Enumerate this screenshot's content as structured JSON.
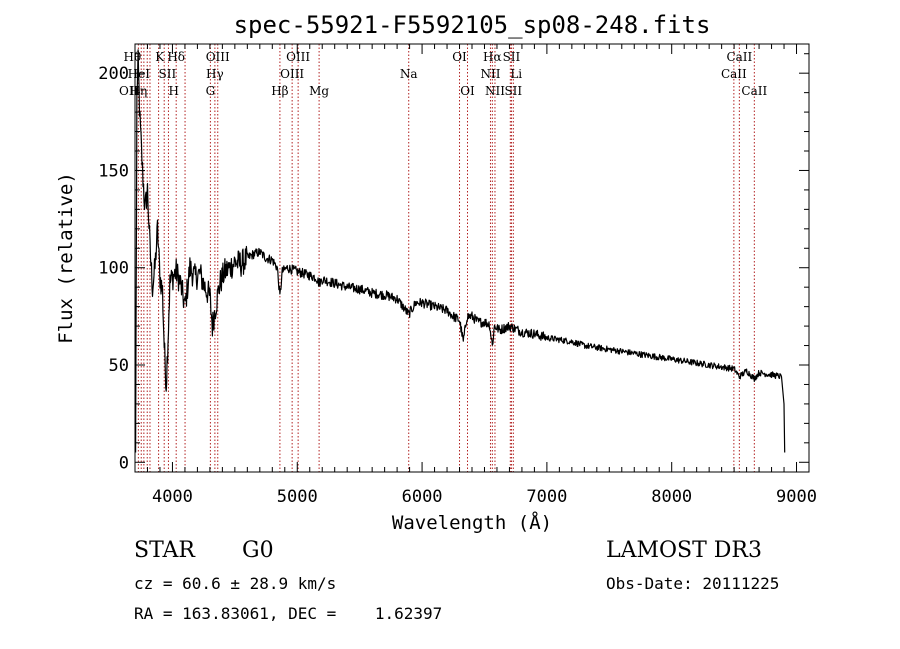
{
  "chart_data": {
    "type": "line",
    "title": "spec-55921-F5592105_sp08-248.fits",
    "xlabel": "Wavelength (Å)",
    "ylabel": "Flux (relative)",
    "xlim": [
      3700,
      9100
    ],
    "ylim": [
      -5,
      215
    ],
    "xticks": [
      4000,
      5000,
      6000,
      7000,
      8000,
      9000
    ],
    "yticks": [
      0,
      50,
      100,
      150,
      200
    ],
    "series": [
      {
        "name": "spectrum",
        "x": [
          3705,
          3715,
          3725,
          3740,
          3760,
          3780,
          3800,
          3820,
          3840,
          3860,
          3880,
          3900,
          3920,
          3934,
          3950,
          3968,
          3980,
          4000,
          4030,
          4060,
          4101,
          4140,
          4180,
          4220,
          4260,
          4300,
          4320,
          4340,
          4380,
          4420,
          4460,
          4500,
          4550,
          4600,
          4650,
          4700,
          4750,
          4800,
          4840,
          4861,
          4880,
          4920,
          4960,
          5000,
          5050,
          5100,
          5150,
          5175,
          5200,
          5300,
          5400,
          5500,
          5600,
          5700,
          5800,
          5893,
          5950,
          6000,
          6100,
          6200,
          6250,
          6300,
          6330,
          6360,
          6400,
          6450,
          6500,
          6540,
          6563,
          6580,
          6620,
          6700,
          6800,
          6900,
          7000,
          7100,
          7200,
          7300,
          7400,
          7500,
          7600,
          7700,
          7800,
          7900,
          8000,
          8100,
          8200,
          8300,
          8400,
          8500,
          8542,
          8600,
          8662,
          8700,
          8800,
          8880,
          8900,
          8905
        ],
        "y": [
          5,
          190,
          205,
          175,
          150,
          130,
          140,
          110,
          90,
          100,
          120,
          95,
          88,
          60,
          40,
          70,
          92,
          95,
          98,
          93,
          80,
          100,
          95,
          97,
          90,
          85,
          70,
          78,
          92,
          98,
          100,
          103,
          102,
          105,
          107,
          108,
          105,
          104,
          100,
          85,
          98,
          100,
          99,
          98,
          97,
          96,
          95,
          92,
          94,
          92,
          90,
          89,
          87,
          86,
          84,
          76,
          82,
          82,
          80,
          78,
          75,
          73,
          62,
          75,
          75,
          72,
          72,
          71,
          60,
          70,
          68,
          70,
          67,
          66,
          64,
          63,
          62,
          60,
          59,
          58,
          57,
          56,
          55,
          54,
          53,
          52,
          51,
          50,
          49,
          48,
          44,
          47,
          43,
          46,
          45,
          44,
          30,
          5
        ]
      }
    ],
    "line_marker_color": "#b22222",
    "line_markers": [
      {
        "x": 3727,
        "label": "OII",
        "row": 3,
        "align": "end"
      },
      {
        "x": 3750,
        "label": "Hθ",
        "row": 1,
        "align": "end"
      },
      {
        "x": 3771,
        "label": "",
        "row": 0,
        "align": "end"
      },
      {
        "x": 3798,
        "label": "Hη",
        "row": 3,
        "align": "end"
      },
      {
        "x": 3820,
        "label": "HeI",
        "row": 2,
        "align": "end"
      },
      {
        "x": 3889,
        "label": "",
        "row": 0,
        "align": "end"
      },
      {
        "x": 3934,
        "label": "K",
        "row": 1,
        "align": "end"
      },
      {
        "x": 3968,
        "label": "H",
        "row": 3,
        "align": "start"
      },
      {
        "x": 4030,
        "label": "SII",
        "row": 2,
        "align": "end"
      },
      {
        "x": 4101,
        "label": "Hδ",
        "row": 1,
        "align": "end"
      },
      {
        "x": 4304,
        "label": "G",
        "row": 3,
        "align": "middle"
      },
      {
        "x": 4340,
        "label": "Hγ",
        "row": 2,
        "align": "middle"
      },
      {
        "x": 4363,
        "label": "OIII",
        "row": 1,
        "align": "middle"
      },
      {
        "x": 4861,
        "label": "Hβ",
        "row": 3,
        "align": "middle"
      },
      {
        "x": 4959,
        "label": "OIII",
        "row": 2,
        "align": "middle"
      },
      {
        "x": 5007,
        "label": "OIII",
        "row": 1,
        "align": "middle"
      },
      {
        "x": 5175,
        "label": "Mg",
        "row": 3,
        "align": "middle"
      },
      {
        "x": 5893,
        "label": "Na",
        "row": 2,
        "align": "middle"
      },
      {
        "x": 6300,
        "label": "OI",
        "row": 1,
        "align": "middle"
      },
      {
        "x": 6364,
        "label": "OI",
        "row": 3,
        "align": "middle"
      },
      {
        "x": 6548,
        "label": "NII",
        "row": 2,
        "align": "middle"
      },
      {
        "x": 6563,
        "label": "Hα",
        "row": 1,
        "align": "middle"
      },
      {
        "x": 6584,
        "label": "NII",
        "row": 3,
        "align": "middle"
      },
      {
        "x": 6707,
        "label": "Li",
        "row": 2,
        "align": "start"
      },
      {
        "x": 6716,
        "label": "SII",
        "row": 1,
        "align": "middle"
      },
      {
        "x": 6731,
        "label": "SII",
        "row": 3,
        "align": "middle"
      },
      {
        "x": 8498,
        "label": "CaII",
        "row": 2,
        "align": "middle"
      },
      {
        "x": 8542,
        "label": "CaII",
        "row": 1,
        "align": "middle"
      },
      {
        "x": 8662,
        "label": "CaII",
        "row": 3,
        "align": "middle"
      }
    ]
  },
  "info": {
    "class": "STAR",
    "subclass": "G0",
    "survey": "LAMOST DR3",
    "cz": "cz = 60.6 ± 28.9 km/s",
    "obs_date": "Obs-Date: 20111225",
    "radec": "RA = 163.83061, DEC =    1.62397"
  }
}
